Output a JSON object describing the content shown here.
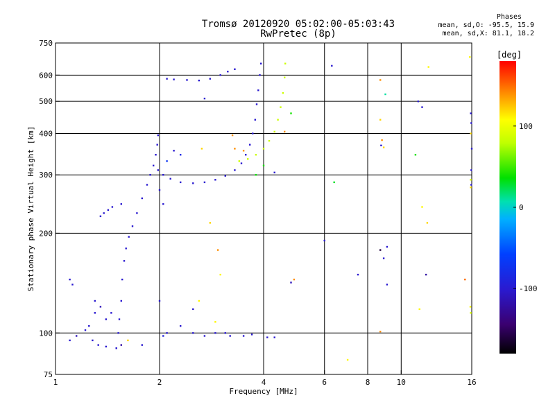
{
  "chart_data": {
    "type": "scatter",
    "title": "Tromsø 20120920 05:02:00-05:03:43",
    "subtitle": "RwPretec (8p)",
    "xlabel": "Frequency [MHz]",
    "ylabel": "Stationary phase Virtual Height [km]",
    "xscale": "log",
    "yscale": "log",
    "xlim": [
      1,
      16
    ],
    "ylim": [
      75,
      750
    ],
    "xticks": [
      1,
      2,
      4,
      6,
      8,
      10,
      16
    ],
    "yticks": [
      75,
      100,
      200,
      300,
      400,
      500,
      600,
      750
    ],
    "grid_x": [
      2,
      4,
      6,
      8,
      10
    ],
    "grid_y": [
      100,
      200,
      300,
      400,
      500,
      600
    ],
    "phases_legend": {
      "title": "Phases",
      "line_o": "mean, sd,O: -95.5, 15.9",
      "line_x": "mean, sd,X:  81.1, 18.2"
    },
    "colorbar": {
      "label": "[deg]",
      "range": [
        -180,
        180
      ],
      "ticks": [
        100,
        0,
        -100
      ]
    },
    "trace_o_lower": {
      "phase": -100,
      "points": [
        [
          1.5,
          90
        ],
        [
          1.52,
          100
        ],
        [
          1.53,
          110
        ],
        [
          1.55,
          125
        ],
        [
          1.56,
          145
        ],
        [
          1.58,
          165
        ],
        [
          1.6,
          180
        ],
        [
          1.63,
          195
        ],
        [
          1.67,
          210
        ],
        [
          1.72,
          230
        ],
        [
          1.78,
          255
        ],
        [
          1.84,
          280
        ],
        [
          1.88,
          300
        ],
        [
          1.92,
          320
        ],
        [
          1.95,
          345
        ],
        [
          1.97,
          370
        ],
        [
          1.98,
          395
        ]
      ]
    },
    "trace_o_upper": {
      "phase": -100,
      "points": [
        [
          1.98,
          310
        ],
        [
          2.05,
          300
        ],
        [
          2.15,
          292
        ],
        [
          2.3,
          285
        ],
        [
          2.5,
          283
        ],
        [
          2.7,
          285
        ],
        [
          2.9,
          290
        ],
        [
          3.1,
          298
        ],
        [
          3.3,
          310
        ],
        [
          3.45,
          325
        ],
        [
          3.55,
          345
        ],
        [
          3.65,
          370
        ],
        [
          3.72,
          400
        ],
        [
          3.78,
          440
        ],
        [
          3.82,
          490
        ],
        [
          3.86,
          540
        ],
        [
          3.9,
          600
        ],
        [
          3.93,
          650
        ]
      ]
    },
    "trace_x": {
      "phase": 85,
      "points": [
        [
          3.4,
          330
        ],
        [
          3.6,
          335
        ],
        [
          3.8,
          345
        ],
        [
          4.0,
          360
        ],
        [
          4.15,
          380
        ],
        [
          4.3,
          405
        ],
        [
          4.4,
          440
        ],
        [
          4.48,
          480
        ],
        [
          4.55,
          530
        ],
        [
          4.6,
          590
        ],
        [
          4.62,
          650
        ]
      ]
    },
    "scatter_extra": [
      [
        1.1,
        145,
        -100
      ],
      [
        1.12,
        140,
        -100
      ],
      [
        1.35,
        225,
        -100
      ],
      [
        1.38,
        230,
        -100
      ],
      [
        1.42,
        235,
        -100
      ],
      [
        1.46,
        240,
        -100
      ],
      [
        1.55,
        245,
        -100
      ],
      [
        1.3,
        115,
        -100
      ],
      [
        1.35,
        120,
        -110
      ],
      [
        1.4,
        110,
        -100
      ],
      [
        1.25,
        105,
        -100
      ],
      [
        1.3,
        125,
        -100
      ],
      [
        1.45,
        115,
        -100
      ],
      [
        1.1,
        95,
        -100
      ],
      [
        1.15,
        98,
        -110
      ],
      [
        1.22,
        102,
        -100
      ],
      [
        1.28,
        95,
        -100
      ],
      [
        1.33,
        92,
        -100
      ],
      [
        1.4,
        91,
        -100
      ],
      [
        1.5,
        90,
        -100
      ],
      [
        1.55,
        92,
        -120
      ],
      [
        1.62,
        95,
        120
      ],
      [
        1.78,
        92,
        -100
      ],
      [
        2.05,
        98,
        -90
      ],
      [
        2.1,
        100,
        -100
      ],
      [
        2.5,
        100,
        -100
      ],
      [
        2.7,
        98,
        -100
      ],
      [
        2.9,
        100,
        -100
      ],
      [
        3.1,
        100,
        -100
      ],
      [
        3.2,
        98,
        -100
      ],
      [
        3.5,
        98,
        -100
      ],
      [
        3.7,
        99,
        -100
      ],
      [
        4.1,
        97,
        -100
      ],
      [
        4.3,
        97,
        -100
      ],
      [
        2.1,
        585,
        -100
      ],
      [
        2.2,
        582,
        -100
      ],
      [
        2.4,
        580,
        -100
      ],
      [
        2.6,
        578,
        -100
      ],
      [
        2.8,
        585,
        -100
      ],
      [
        3.0,
        600,
        -100
      ],
      [
        3.15,
        615,
        -100
      ],
      [
        3.3,
        625,
        -100
      ],
      [
        2.7,
        510,
        -100
      ],
      [
        2.2,
        355,
        -100
      ],
      [
        2.3,
        345,
        -80
      ],
      [
        2.65,
        360,
        120
      ],
      [
        2.0,
        270,
        -100
      ],
      [
        2.1,
        330,
        -70
      ],
      [
        2.05,
        245,
        -100
      ],
      [
        2.8,
        215,
        120
      ],
      [
        2.95,
        178,
        140
      ],
      [
        3.0,
        150,
        110
      ],
      [
        2.6,
        125,
        110
      ],
      [
        2.9,
        108,
        110
      ],
      [
        2.5,
        118,
        -100
      ],
      [
        2.0,
        125,
        -100
      ],
      [
        2.3,
        105,
        -100
      ],
      [
        3.25,
        395,
        140
      ],
      [
        3.3,
        360,
        140
      ],
      [
        3.5,
        355,
        140
      ],
      [
        3.8,
        300,
        40
      ],
      [
        4.0,
        320,
        40
      ],
      [
        4.3,
        305,
        -100
      ],
      [
        4.6,
        405,
        140
      ],
      [
        4.8,
        460,
        40
      ],
      [
        4.8,
        142,
        -110
      ],
      [
        4.9,
        145,
        140
      ],
      [
        6.0,
        190,
        -100
      ],
      [
        6.3,
        640,
        -100
      ],
      [
        6.4,
        285,
        30
      ],
      [
        7.0,
        83,
        110
      ],
      [
        7.5,
        150,
        -100
      ],
      [
        8.7,
        580,
        140
      ],
      [
        8.7,
        440,
        120
      ],
      [
        8.75,
        368,
        -100
      ],
      [
        8.8,
        382,
        140
      ],
      [
        8.9,
        363,
        120
      ],
      [
        9.0,
        525,
        10
      ],
      [
        8.7,
        178,
        -160
      ],
      [
        9.1,
        182,
        -100
      ],
      [
        9.1,
        140,
        -100
      ],
      [
        8.7,
        101,
        140
      ],
      [
        8.9,
        168,
        -100
      ],
      [
        11.2,
        500,
        -100
      ],
      [
        11.5,
        480,
        -100
      ],
      [
        11.0,
        345,
        40
      ],
      [
        11.5,
        240,
        110
      ],
      [
        12.0,
        635,
        110
      ],
      [
        11.9,
        215,
        120
      ],
      [
        11.3,
        118,
        110
      ],
      [
        11.8,
        150,
        -120
      ],
      [
        15.3,
        145,
        150
      ],
      [
        15.8,
        680,
        110
      ],
      [
        15.9,
        460,
        -100
      ],
      [
        15.95,
        430,
        -100
      ],
      [
        15.9,
        400,
        120
      ],
      [
        16.0,
        360,
        -100
      ],
      [
        15.95,
        310,
        -100
      ],
      [
        15.9,
        290,
        90
      ],
      [
        15.95,
        280,
        -100
      ],
      [
        15.9,
        275,
        120
      ],
      [
        15.85,
        120,
        110
      ],
      [
        15.9,
        115,
        90
      ]
    ]
  }
}
